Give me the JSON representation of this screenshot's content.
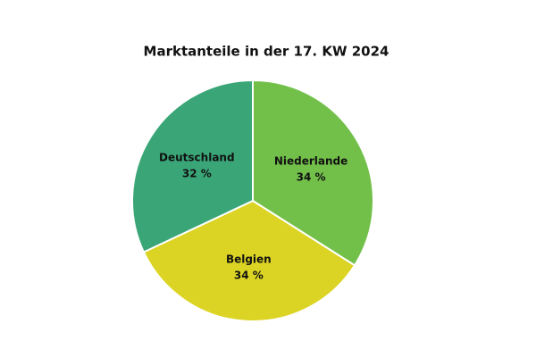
{
  "chart_data": {
    "type": "pie",
    "title": "Marktanteile in der 17. KW 2024",
    "categories": [
      "Niederlande",
      "Belgien",
      "Deutschland"
    ],
    "values": [
      34,
      34,
      32
    ],
    "value_labels": [
      "34 %",
      "34 %",
      "32 %"
    ],
    "colors": [
      "#72c04a",
      "#dcd424",
      "#3aa678"
    ]
  }
}
